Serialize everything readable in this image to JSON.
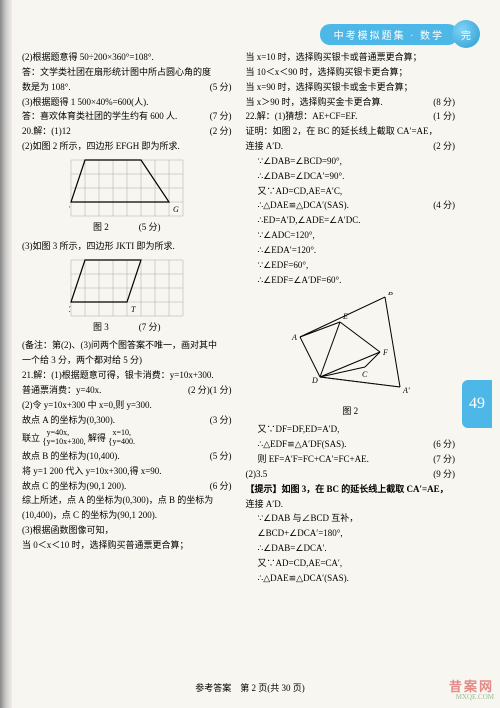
{
  "header": {
    "badge_text": "中考模拟题集 · 数学",
    "badge_circle": "完",
    "page_badge": "49"
  },
  "left_col": [
    {
      "t": "(2)根据题意得 50÷200×360°=108°."
    },
    {
      "t": "答：文学类社团在扇形统计图中所占圆心角的度"
    },
    {
      "t": "数是为 108°.",
      "s": "(5 分)"
    },
    {
      "t": "(3)根据题得 1 500×40%=600(人)."
    },
    {
      "t": "答：喜欢体育类社团的学生约有 600 人.",
      "s": "(7 分)"
    },
    {
      "t": "20.解：(1)12",
      "s": "(2 分)"
    },
    {
      "t": "(2)如图 2 所示，四边形 EFGH 即为所求."
    }
  ],
  "fig2": {
    "label": "图 2",
    "grid_size": 8,
    "cell": 14,
    "nodes": {
      "E": [
        1,
        0
      ],
      "H": [
        5,
        0
      ],
      "F": [
        0,
        3
      ],
      "G": [
        7,
        3
      ]
    },
    "score": "(5 分)"
  },
  "left_col2": [
    {
      "t": "(3)如图 3 所示，四边形 JKTI 即为所求."
    }
  ],
  "fig3": {
    "label": "图 3",
    "grid_size": 8,
    "cell": 14,
    "nodes": {
      "J": [
        1,
        0
      ],
      "I": [
        5,
        0
      ],
      "K": [
        0,
        3
      ],
      "T": [
        4,
        3
      ]
    },
    "score": "(7 分)"
  },
  "left_col3": [
    {
      "t": "(备注：第(2)、(3)问两个图答案不唯一，画对其中"
    },
    {
      "t": "一个给 3 分，两个都对给 5 分)"
    },
    {
      "t": "21.解：(1)根据题意可得，银卡消费：y=10x+300."
    },
    {
      "t": "",
      "s": "(1 分)"
    },
    {
      "t": "普通票消费：y=40x.",
      "s": "(2 分)"
    },
    {
      "t": "(2)令 y=10x+300 中 x=0,则 y=300."
    },
    {
      "t": "故点 A 的坐标为(0,300).",
      "s": "(3 分)"
    },
    {
      "t": "联立",
      "eq": true
    },
    {
      "t": "故点 B 的坐标为(10,400).",
      "s": "(5 分)"
    },
    {
      "t": "将 y=1 200 代入 y=10x+300,得 x=90."
    },
    {
      "t": "故点 C 的坐标为(90,1 200).",
      "s": "(6 分)"
    },
    {
      "t": "综上所述，点 A 的坐标为(0,300)，点 B 的坐标为"
    },
    {
      "t": "(10,400)，点 C 的坐标为(90,1 200)."
    },
    {
      "t": "(3)根据函数图像可知，"
    },
    {
      "t": "当 0＜x＜10 时，选择购买普通票更合算；"
    }
  ],
  "equation_block": {
    "left": [
      "y=40x,",
      "y=10x+300,"
    ],
    "right": [
      "x=10,",
      "y=400."
    ],
    "middle": "解得"
  },
  "right_col": [
    {
      "t": "当 x=10 时，选择购买银卡或普通票更合算；"
    },
    {
      "t": "当 10＜x＜90 时，选择购买银卡更合算；"
    },
    {
      "t": "当 x=90 时，选择购买银卡或金卡更合算；"
    },
    {
      "t": "当 x＞90 时，选择购买金卡更合算.",
      "s": "(8 分)"
    },
    {
      "t": "22.解：(1)猜想：AE+CF=EF.",
      "s": "(1 分)"
    },
    {
      "t": "证明：如图 2，在 BC 的延长线上截取 CA′=AE，"
    },
    {
      "t": "连接 A′D.",
      "s": "(2 分)"
    },
    {
      "t": "∵∠DAB=∠BCD=90°,",
      "i": true
    },
    {
      "t": "∴∠DAB=∠DCA′=90°.",
      "i": true
    },
    {
      "t": "又∵AD=CD,AE=A′C,",
      "i": true
    },
    {
      "t": "∴△DAE≌△DCA′(SAS).",
      "i": true,
      "s": "(4 分)"
    },
    {
      "t": "∴ED=A′D,∠ADE=∠A′DC.",
      "i": true
    },
    {
      "t": "∵∠ADC=120°,",
      "i": true
    },
    {
      "t": "∴∠EDA′=120°.",
      "i": true
    },
    {
      "t": "∵∠EDF=60°,",
      "i": true
    },
    {
      "t": "∴∠EDF=∠A′DF=60°.",
      "i": true
    }
  ],
  "fig_r2": {
    "label": "图 2"
  },
  "right_col2": [
    {
      "t": "又∵DF=DF,ED=A′D,",
      "i": true
    },
    {
      "t": "∴△EDF≌△A′DF(SAS).",
      "i": true,
      "s": "(6 分)"
    },
    {
      "t": "则 EF=A′F=FC+CA′=FC+AE.",
      "i": true,
      "s": "(7 分)"
    },
    {
      "t": "(2)3.5",
      "s": "(9 分)"
    },
    {
      "t": "【提示】如图 3，在 BC 的延长线上截取 CA′=AE，",
      "hint": true
    },
    {
      "t": "连接 A′D."
    },
    {
      "t": "∵∠DAB 与∠BCD 互补，",
      "i": true
    },
    {
      "t": "∠BCD+∠DCA′=180°,",
      "i": true
    },
    {
      "t": "∴∠DAB=∠DCA′.",
      "i": true
    },
    {
      "t": "又∵AD=CD,AE=CA′,",
      "i": true
    },
    {
      "t": "∴△DAE≌△DCA′(SAS).",
      "i": true
    }
  ],
  "footer": "参考答案　第 2 页(共 30 页)",
  "watermark": {
    "cn": "昔案网",
    "en": "MXQE.COM"
  }
}
